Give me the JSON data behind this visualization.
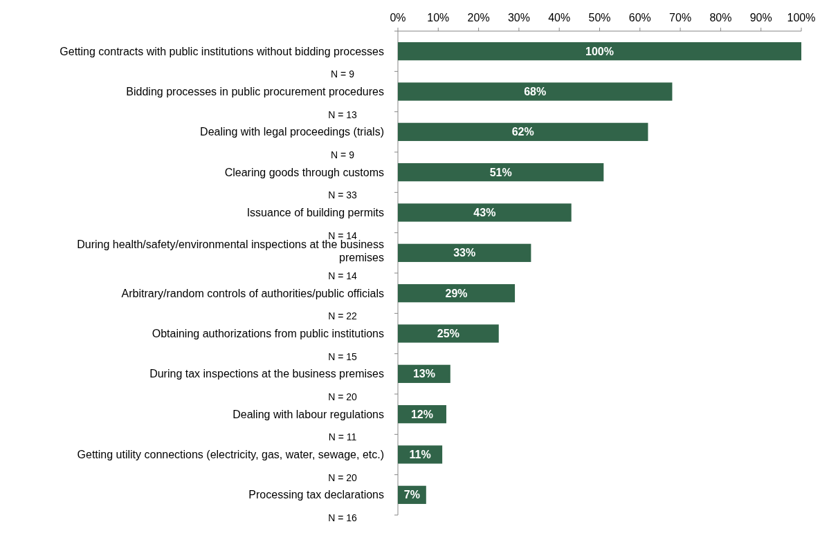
{
  "chart_data": {
    "type": "bar",
    "orientation": "horizontal",
    "categories": [
      "Getting contracts with public institutions without bidding processes",
      "Bidding processes in public procurement procedures",
      "Dealing with legal proceedings (trials)",
      "Clearing goods through customs",
      "Issuance of building permits",
      "During health/safety/environmental inspections at the business premises",
      "Arbitrary/random controls of authorities/public officials",
      "Obtaining authorizations from public institutions",
      "During tax inspections at the business premises",
      "Dealing with labour regulations",
      "Getting utility connections (electricity, gas, water, sewage, etc.)",
      "Processing tax declarations"
    ],
    "values": [
      100,
      68,
      62,
      51,
      43,
      33,
      29,
      25,
      13,
      12,
      11,
      7
    ],
    "value_labels": [
      "100%",
      "68%",
      "62%",
      "51%",
      "43%",
      "33%",
      "29%",
      "25%",
      "13%",
      "12%",
      "11%",
      "7%"
    ],
    "color": "#316449",
    "xlim": [
      0,
      100
    ],
    "xticks": [
      {
        "value": 0,
        "label": "0%"
      },
      {
        "value": 10,
        "label": "10%"
      },
      {
        "value": 20,
        "label": "20%"
      },
      {
        "value": 30,
        "label": "30%"
      },
      {
        "value": 40,
        "label": "40%"
      },
      {
        "value": 50,
        "label": "50%"
      },
      {
        "value": 60,
        "label": "60%"
      },
      {
        "value": 70,
        "label": "70%"
      },
      {
        "value": 80,
        "label": "80%"
      },
      {
        "value": 90,
        "label": "90%"
      },
      {
        "value": 100,
        "label": "100%"
      }
    ],
    "grid": false,
    "annotations": [
      "N = 9",
      "N = 13",
      "N = 9",
      "N = 33",
      "N = 14",
      "N = 14",
      "N = 22",
      "N = 15",
      "N = 20",
      "N = 11",
      "N = 20",
      "N = 16"
    ]
  }
}
